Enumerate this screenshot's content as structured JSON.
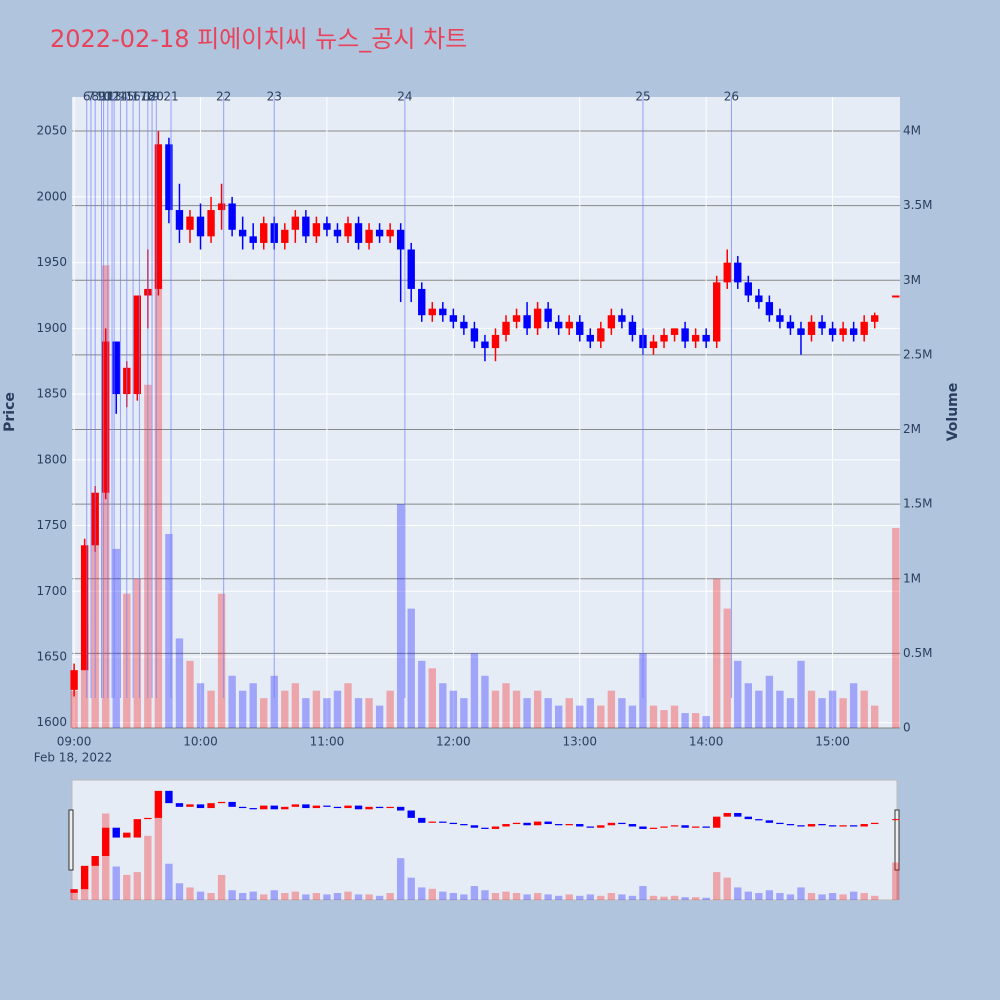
{
  "chart_data": {
    "type": "candlestick",
    "title": "2022-02-18 피에이치씨 뉴스_공시 차트",
    "y_label": "Price",
    "y2_label": "Volume",
    "date_label": "Feb 18, 2022",
    "increasing_color": "#ff0000",
    "decreasing_color": "#0000ff",
    "news_color": "#6f7fff",
    "x": [
      "09:00",
      "09:05",
      "09:10",
      "09:15",
      "09:20",
      "09:25",
      "09:30",
      "09:35",
      "09:40",
      "09:45",
      "09:50",
      "09:55",
      "10:00",
      "10:05",
      "10:10",
      "10:15",
      "10:20",
      "10:25",
      "10:30",
      "10:35",
      "10:40",
      "10:45",
      "10:50",
      "10:55",
      "11:00",
      "11:05",
      "11:10",
      "11:15",
      "11:20",
      "11:25",
      "11:30",
      "11:35",
      "11:40",
      "11:45",
      "11:50",
      "11:55",
      "12:00",
      "12:05",
      "12:10",
      "12:15",
      "12:20",
      "12:25",
      "12:30",
      "12:35",
      "12:40",
      "12:45",
      "12:50",
      "12:55",
      "13:00",
      "13:05",
      "13:10",
      "13:15",
      "13:20",
      "13:25",
      "13:30",
      "13:35",
      "13:40",
      "13:45",
      "13:50",
      "13:55",
      "14:00",
      "14:05",
      "14:10",
      "14:15",
      "14:20",
      "14:25",
      "14:30",
      "14:35",
      "14:40",
      "14:45",
      "14:50",
      "14:55",
      "15:00",
      "15:05",
      "15:10",
      "15:15",
      "15:20",
      "15:30"
    ],
    "open": [
      1625,
      1640,
      1735,
      1775,
      1890,
      1850,
      1850,
      1925,
      1930,
      2040,
      1990,
      1975,
      1985,
      1970,
      1990,
      1995,
      1975,
      1970,
      1965,
      1980,
      1965,
      1975,
      1985,
      1970,
      1980,
      1975,
      1970,
      1980,
      1965,
      1975,
      1970,
      1975,
      1960,
      1930,
      1910,
      1915,
      1910,
      1905,
      1900,
      1890,
      1885,
      1895,
      1905,
      1910,
      1900,
      1915,
      1905,
      1900,
      1905,
      1895,
      1890,
      1900,
      1910,
      1905,
      1895,
      1885,
      1890,
      1895,
      1900,
      1890,
      1895,
      1890,
      1935,
      1950,
      1935,
      1925,
      1920,
      1910,
      1905,
      1900,
      1895,
      1905,
      1900,
      1895,
      1900,
      1895,
      1905,
      1925
    ],
    "high": [
      1645,
      1740,
      1780,
      1900,
      1890,
      1875,
      1925,
      1960,
      2050,
      2045,
      2010,
      1990,
      1995,
      2000,
      2010,
      2000,
      1985,
      1980,
      1985,
      1985,
      1980,
      1990,
      1990,
      1985,
      1985,
      1980,
      1985,
      1985,
      1980,
      1980,
      1980,
      1980,
      1965,
      1935,
      1920,
      1920,
      1915,
      1910,
      1905,
      1895,
      1900,
      1910,
      1915,
      1920,
      1920,
      1920,
      1910,
      1910,
      1910,
      1900,
      1905,
      1915,
      1915,
      1910,
      1900,
      1895,
      1900,
      1900,
      1905,
      1900,
      1900,
      1940,
      1960,
      1955,
      1940,
      1930,
      1925,
      1915,
      1910,
      1905,
      1910,
      1910,
      1905,
      1905,
      1905,
      1910,
      1912,
      1925
    ],
    "low": [
      1620,
      1640,
      1730,
      1770,
      1835,
      1840,
      1845,
      1900,
      1925,
      1980,
      1965,
      1965,
      1960,
      1965,
      1975,
      1970,
      1960,
      1960,
      1960,
      1960,
      1960,
      1965,
      1965,
      1965,
      1970,
      1965,
      1965,
      1960,
      1960,
      1965,
      1965,
      1920,
      1920,
      1905,
      1905,
      1905,
      1900,
      1895,
      1885,
      1875,
      1875,
      1890,
      1900,
      1895,
      1895,
      1900,
      1895,
      1895,
      1890,
      1885,
      1885,
      1895,
      1900,
      1890,
      1880,
      1880,
      1885,
      1890,
      1885,
      1885,
      1885,
      1885,
      1930,
      1930,
      1920,
      1915,
      1905,
      1900,
      1895,
      1880,
      1890,
      1895,
      1890,
      1890,
      1890,
      1890,
      1900,
      1925
    ],
    "close": [
      1640,
      1735,
      1775,
      1890,
      1850,
      1870,
      1925,
      1930,
      2040,
      1990,
      1975,
      1985,
      1970,
      1990,
      1995,
      1975,
      1970,
      1965,
      1980,
      1965,
      1975,
      1985,
      1970,
      1980,
      1975,
      1970,
      1980,
      1965,
      1975,
      1970,
      1975,
      1960,
      1930,
      1910,
      1915,
      1910,
      1905,
      1900,
      1890,
      1885,
      1895,
      1905,
      1910,
      1900,
      1915,
      1905,
      1900,
      1905,
      1895,
      1890,
      1900,
      1910,
      1905,
      1895,
      1885,
      1890,
      1895,
      1900,
      1890,
      1895,
      1890,
      1935,
      1950,
      1935,
      1925,
      1920,
      1910,
      1905,
      1900,
      1895,
      1905,
      1900,
      1895,
      1900,
      1895,
      1905,
      1910,
      1925
    ],
    "volume": [
      250000,
      700000,
      1400000,
      3100000,
      1200000,
      900000,
      1000000,
      2300000,
      3000000,
      1300000,
      600000,
      450000,
      300000,
      250000,
      900000,
      350000,
      250000,
      300000,
      200000,
      350000,
      250000,
      300000,
      200000,
      250000,
      200000,
      250000,
      300000,
      200000,
      200000,
      150000,
      250000,
      1500000,
      800000,
      450000,
      400000,
      300000,
      250000,
      200000,
      500000,
      350000,
      250000,
      300000,
      250000,
      200000,
      250000,
      200000,
      150000,
      200000,
      150000,
      200000,
      150000,
      250000,
      200000,
      150000,
      500000,
      150000,
      120000,
      150000,
      100000,
      100000,
      80000,
      1000000,
      800000,
      450000,
      300000,
      250000,
      350000,
      250000,
      200000,
      450000,
      250000,
      200000,
      250000,
      200000,
      300000,
      250000,
      150000,
      1340000
    ],
    "news": [
      {
        "time": "09:06",
        "label": "6"
      },
      {
        "time": "09:08",
        "label": "7"
      },
      {
        "time": "09:10",
        "label": "8"
      },
      {
        "time": "09:13",
        "label": "9"
      },
      {
        "time": "09:14",
        "label": "10"
      },
      {
        "time": "09:16",
        "label": "11"
      },
      {
        "time": "09:18",
        "label": "12"
      },
      {
        "time": "09:19",
        "label": "13"
      },
      {
        "time": "09:22",
        "label": "14"
      },
      {
        "time": "09:25",
        "label": "15"
      },
      {
        "time": "09:28",
        "label": "16"
      },
      {
        "time": "09:31",
        "label": "17"
      },
      {
        "time": "09:35",
        "label": "18"
      },
      {
        "time": "09:37",
        "label": "19"
      },
      {
        "time": "09:39",
        "label": "20"
      },
      {
        "time": "09:46",
        "label": "21"
      },
      {
        "time": "10:11",
        "label": "22"
      },
      {
        "time": "10:35",
        "label": "23"
      },
      {
        "time": "11:37",
        "label": "24"
      },
      {
        "time": "13:30",
        "label": "25"
      },
      {
        "time": "14:12",
        "label": "26"
      }
    ],
    "xlim": [
      "08:59",
      "15:32"
    ],
    "xticks": [
      "09:00",
      "10:00",
      "11:00",
      "12:00",
      "13:00",
      "14:00",
      "15:00"
    ],
    "ylim": [
      1596,
      2076
    ],
    "yticks": [
      1600,
      1650,
      1700,
      1750,
      1800,
      1850,
      1900,
      1950,
      2000,
      2050
    ],
    "y2lim": [
      0,
      4228000
    ],
    "y2ticks": [
      0,
      {
        "value": 500000,
        "label": "0.5M"
      },
      {
        "value": 1000000,
        "label": "1M"
      },
      {
        "value": 1500000,
        "label": "1.5M"
      },
      {
        "value": 2000000,
        "label": "2M"
      },
      {
        "value": 2500000,
        "label": "2.5M"
      },
      {
        "value": 3000000,
        "label": "3M"
      },
      {
        "value": 3500000,
        "label": "3.5M"
      },
      {
        "value": 4000000,
        "label": "4M"
      }
    ],
    "grid": true
  }
}
